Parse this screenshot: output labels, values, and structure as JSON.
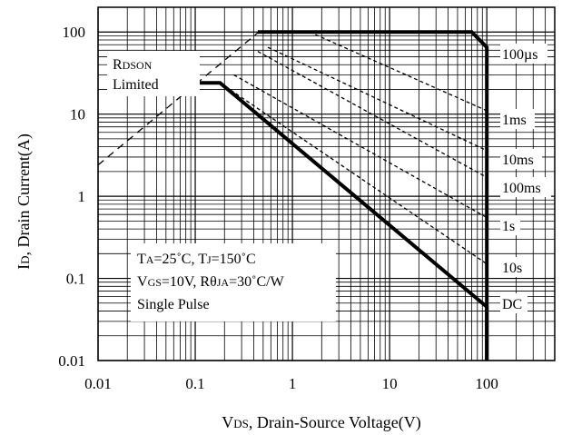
{
  "chart_data": {
    "type": "line",
    "xscale": "log",
    "yscale": "log",
    "xlim": [
      0.01,
      500
    ],
    "ylim": [
      0.01,
      200
    ],
    "grid": true,
    "xlabel": {
      "main": "V",
      "sub": "DS",
      "rest": ", Drain-Source Voltage(V)"
    },
    "ylabel": {
      "main": "I",
      "sub": "D",
      "rest": ", Drain Current(A)"
    },
    "x_ticks": [
      {
        "value": 0.01,
        "label": "0.01"
      },
      {
        "value": 0.1,
        "label": "0.1"
      },
      {
        "value": 1,
        "label": "1"
      },
      {
        "value": 10,
        "label": "10"
      },
      {
        "value": 100,
        "label": "100"
      }
    ],
    "y_ticks": [
      {
        "value": 0.01,
        "label": "0.01"
      },
      {
        "value": 0.1,
        "label": "0.1"
      },
      {
        "value": 1,
        "label": "1"
      },
      {
        "value": 10,
        "label": "10"
      },
      {
        "value": 100,
        "label": "100"
      }
    ],
    "series": [
      {
        "name": "100µs",
        "style": "bold",
        "points": [
          [
            0.44,
            100
          ],
          [
            70,
            100
          ],
          [
            100,
            65
          ],
          [
            100,
            0.01
          ]
        ]
      },
      {
        "name": "1ms",
        "style": "dashed",
        "points": [
          [
            1.5,
            100
          ],
          [
            100,
            11
          ]
        ]
      },
      {
        "name": "10ms",
        "style": "dashed",
        "points": [
          [
            0.56,
            65
          ],
          [
            100,
            3.6
          ]
        ]
      },
      {
        "name": "100ms",
        "style": "dashed",
        "points": [
          [
            0.44,
            58
          ],
          [
            100,
            1.7
          ]
        ]
      },
      {
        "name": "1s",
        "style": "dashed",
        "points": [
          [
            0.25,
            30
          ],
          [
            100,
            0.55
          ]
        ]
      },
      {
        "name": "10s",
        "style": "dashed",
        "points": [
          [
            0.18,
            24
          ],
          [
            100,
            0.15
          ]
        ]
      },
      {
        "name": "DC",
        "style": "bold",
        "points": [
          [
            0.11,
            24
          ],
          [
            0.18,
            24
          ],
          [
            100,
            0.045
          ],
          [
            100,
            0.01
          ]
        ]
      },
      {
        "name": "RDSON Limited",
        "style": "dashed",
        "points": [
          [
            0.01,
            2.4
          ],
          [
            0.45,
            100
          ]
        ]
      }
    ],
    "annotations": {
      "rdson": {
        "main": "R",
        "sub": "DSON",
        "line2": "Limited"
      },
      "conditions": {
        "line1": {
          "t": "T",
          "ta": "A",
          "eq1": "=25˚C, T",
          "tj": "J",
          "eq2": "=150˚C"
        },
        "line2": {
          "v": "V",
          "gs": "GS",
          "eq1": "=10V, R",
          "theta": "θ",
          "ja": "JA",
          "eq2": "=30˚C/W"
        },
        "line3": "Single Pulse"
      }
    }
  }
}
